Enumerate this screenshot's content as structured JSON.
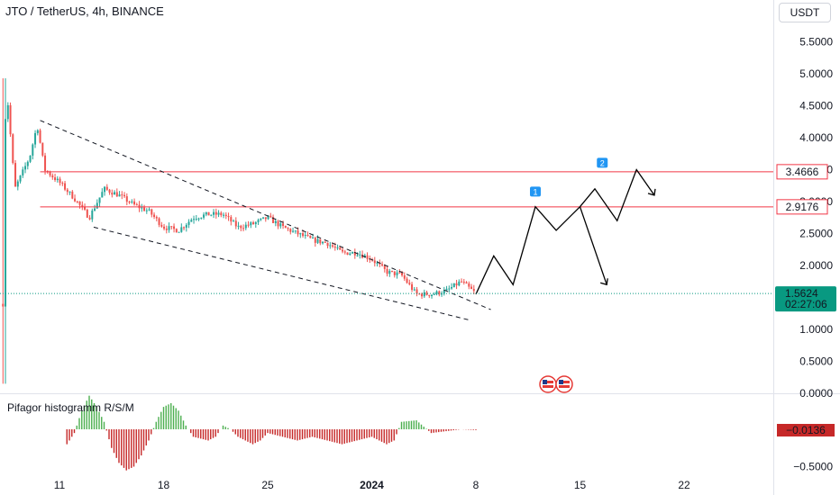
{
  "header": {
    "title": "JTO / TetherUS, 4h, BINANCE",
    "currency": "USDT"
  },
  "colors": {
    "up": "#26a69a",
    "down": "#ef5350",
    "hist_up": "#4caf50",
    "hist_down": "#c62828",
    "hline": "#f23645",
    "line": "#000000",
    "last_price": "#089981",
    "badge": "#2196f3"
  },
  "chart_data": {
    "type": "candlestick",
    "title": "JTO / TetherUS, 4h, BINANCE",
    "y_ticks": [
      "5.5000",
      "5.0000",
      "4.5000",
      "4.0000",
      "3.5000",
      "3.0000",
      "2.5000",
      "2.0000",
      "1.5000",
      "1.0000",
      "0.5000",
      "0.0000"
    ],
    "ylim": [
      0,
      5.9
    ],
    "x_ticks": [
      "11",
      "18",
      "25",
      "2024",
      "8",
      "15",
      "22"
    ],
    "x_tick_days": [
      11,
      18,
      25,
      32,
      39,
      46,
      53
    ],
    "xlim": [
      7.0,
      59.0
    ],
    "price_path": [
      [
        7.2,
        1.4
      ],
      [
        7.4,
        4.9
      ],
      [
        8.0,
        3.2
      ],
      [
        9.0,
        3.7
      ],
      [
        9.5,
        4.2
      ],
      [
        10.0,
        3.5
      ],
      [
        11.0,
        3.3
      ],
      [
        12.0,
        3.05
      ],
      [
        13.0,
        2.75
      ],
      [
        14.0,
        3.2
      ],
      [
        15.0,
        3.1
      ],
      [
        16.0,
        2.95
      ],
      [
        17.0,
        2.85
      ],
      [
        18.0,
        2.6
      ],
      [
        19.0,
        2.55
      ],
      [
        20.0,
        2.75
      ],
      [
        21.0,
        2.8
      ],
      [
        22.0,
        2.8
      ],
      [
        23.0,
        2.6
      ],
      [
        24.0,
        2.65
      ],
      [
        25.0,
        2.75
      ],
      [
        26.0,
        2.6
      ],
      [
        27.0,
        2.5
      ],
      [
        28.0,
        2.4
      ],
      [
        29.0,
        2.35
      ],
      [
        30.0,
        2.2
      ],
      [
        31.0,
        2.2
      ],
      [
        32.0,
        2.1
      ],
      [
        33.0,
        1.9
      ],
      [
        34.0,
        1.85
      ],
      [
        35.0,
        1.55
      ],
      [
        36.0,
        1.55
      ],
      [
        37.0,
        1.6
      ],
      [
        38.0,
        1.75
      ],
      [
        39.0,
        1.56
      ]
    ],
    "last_price": "1.5624",
    "countdown": "02:27:06",
    "horizontal_levels": [
      {
        "value": 3.4666,
        "label": "3.4666"
      },
      {
        "value": 2.9176,
        "label": "2.9176"
      }
    ],
    "trendlines": [
      [
        [
          9.7,
          4.27
        ],
        [
          40.0,
          1.31
        ]
      ],
      [
        [
          13.3,
          2.6
        ],
        [
          38.5,
          1.15
        ]
      ]
    ],
    "projection": [
      [
        39.0,
        1.55
      ],
      [
        40.2,
        2.15
      ],
      [
        41.5,
        1.7
      ],
      [
        43.0,
        2.92
      ],
      [
        44.4,
        2.55
      ],
      [
        46.0,
        2.92
      ],
      [
        47.0,
        3.2
      ],
      [
        48.5,
        2.7
      ],
      [
        49.8,
        3.5
      ],
      [
        51.0,
        3.1
      ]
    ],
    "projection_branch": [
      [
        46.0,
        2.92
      ],
      [
        47.8,
        1.7
      ]
    ],
    "wave_labels": [
      {
        "text": "1",
        "x": 43.0,
        "y": 3.15
      },
      {
        "text": "2",
        "x": 47.5,
        "y": 3.6
      }
    ],
    "indicator": {
      "name": "Pifagor histogramm R/S/M",
      "value": "−0.0136",
      "y_ticks": [
        "−0.5000"
      ],
      "bins": [
        [
          11.5,
          -0.2
        ],
        [
          12.0,
          -0.05
        ],
        [
          12.5,
          0.25
        ],
        [
          13.0,
          0.45
        ],
        [
          13.5,
          0.3
        ],
        [
          14.0,
          0.1
        ],
        [
          14.5,
          -0.25
        ],
        [
          15.0,
          -0.45
        ],
        [
          15.5,
          -0.55
        ],
        [
          16.0,
          -0.5
        ],
        [
          16.5,
          -0.35
        ],
        [
          17.0,
          -0.15
        ],
        [
          17.5,
          0.1
        ],
        [
          18.0,
          0.3
        ],
        [
          18.5,
          0.35
        ],
        [
          19.0,
          0.25
        ],
        [
          19.5,
          0.05
        ],
        [
          20.0,
          -0.1
        ],
        [
          21.0,
          -0.15
        ],
        [
          21.5,
          -0.1
        ],
        [
          22.0,
          0.05
        ],
        [
          22.5,
          0.0
        ],
        [
          23.0,
          -0.1
        ],
        [
          24.0,
          -0.2
        ],
        [
          24.5,
          -0.15
        ],
        [
          25.0,
          -0.05
        ],
        [
          26.0,
          -0.1
        ],
        [
          27.0,
          -0.15
        ],
        [
          28.0,
          -0.1
        ],
        [
          29.0,
          -0.15
        ],
        [
          30.0,
          -0.2
        ],
        [
          31.0,
          -0.15
        ],
        [
          32.0,
          -0.1
        ],
        [
          33.0,
          -0.2
        ],
        [
          33.5,
          -0.15
        ],
        [
          34.0,
          0.1
        ],
        [
          35.0,
          0.12
        ],
        [
          36.0,
          -0.05
        ],
        [
          38.0,
          0.0
        ],
        [
          39.0,
          -0.01
        ]
      ]
    }
  },
  "icons": {
    "flag": "us-flag-icon"
  }
}
